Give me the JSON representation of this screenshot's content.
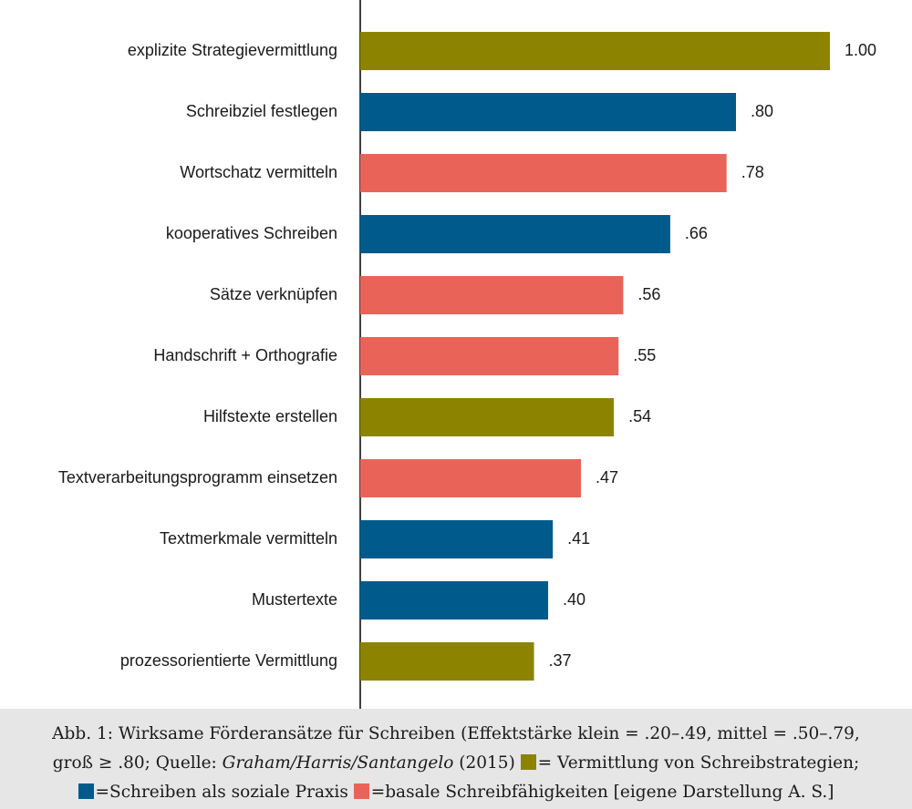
{
  "chart_data": {
    "type": "bar",
    "orientation": "horizontal",
    "categories": [
      "explizite Strategievermittlung",
      "Schreibziel festlegen",
      "Wortschatz vermitteln",
      "kooperatives Schreiben",
      "Sätze verknüpfen",
      "Handschrift + Orthografie",
      "Hilfstexte erstellen",
      "Textverarbeitungsprogramm einsetzen",
      "Textmerkmale vermitteln",
      "Mustertexte",
      "prozessorientierte Vermittlung"
    ],
    "values": [
      1.0,
      0.8,
      0.78,
      0.66,
      0.56,
      0.55,
      0.54,
      0.47,
      0.41,
      0.4,
      0.37
    ],
    "value_labels": [
      "1.00",
      ".80",
      ".78",
      ".66",
      ".56",
      ".55",
      ".54",
      ".47",
      ".41",
      ".40",
      ".37"
    ],
    "groups": [
      "strategien",
      "sozial",
      "basal",
      "sozial",
      "basal",
      "basal",
      "strategien",
      "basal",
      "sozial",
      "sozial",
      "strategien"
    ],
    "colors": {
      "strategien": "#8c8400",
      "sozial": "#005a8c",
      "basal": "#ea6359"
    },
    "xlim": [
      0,
      1.0
    ],
    "grid": false,
    "title": "",
    "xlabel": "",
    "ylabel": ""
  },
  "caption": {
    "line1": "Abb. 1: Wirksame Förderansätze für Schreiben (Effektstärke klein = .20–.49, mittel = .50–.79,",
    "line2_a": "groß ≥ .80; Quelle: ",
    "line2_authors": "Graham/Harris/Santangelo",
    "line2_b": " (2015) ",
    "legend_strategien": "= Vermittlung von Schreibstrategien;",
    "legend_sozial": "=Schreiben als soziale Praxis ",
    "legend_basal": "=basale Schreibfähigkeiten [eigene Darstellung A. S.]"
  }
}
